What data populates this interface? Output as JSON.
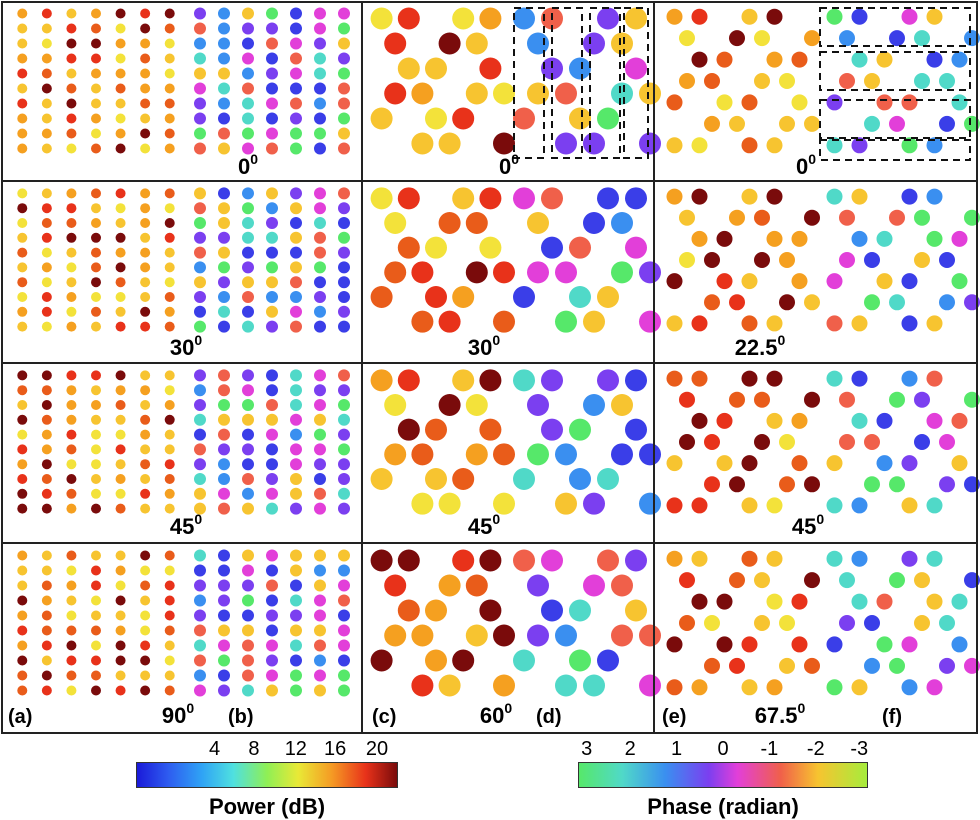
{
  "angles": {
    "row1": [
      "0",
      "0",
      "0"
    ],
    "row2": [
      "30",
      "30",
      "22.5"
    ],
    "row3": [
      "45",
      "45",
      "45"
    ],
    "row4": [
      "90",
      "60",
      "67.5"
    ],
    "superscript": "0"
  },
  "panel_letters": [
    "(a)",
    "(b)",
    "(c)",
    "(d)",
    "(e)",
    "(f)"
  ],
  "colorbars": {
    "power": {
      "title": "Power (dB)",
      "ticks": [
        "4",
        "8",
        "12",
        "16",
        "20"
      ]
    },
    "phase": {
      "title": "Phase (radian)",
      "ticks": [
        "3",
        "2",
        "1",
        "0",
        "-1",
        "-2",
        "-3"
      ]
    }
  },
  "colors": {
    "border": "#222222",
    "divider": "#444444",
    "dashed": "#111111"
  }
}
